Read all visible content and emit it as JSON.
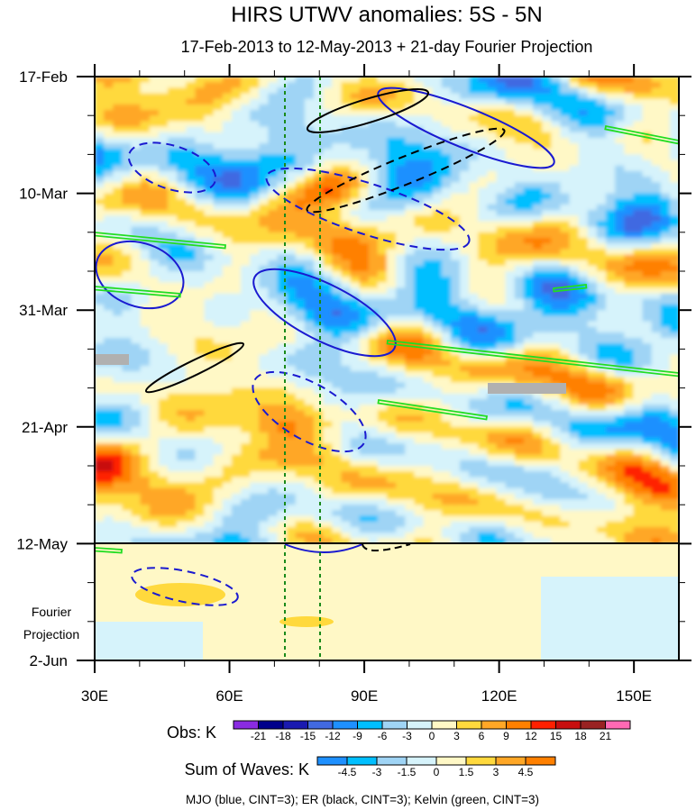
{
  "chart_data": {
    "type": "heatmap",
    "title": "HIRS UTWV anomalies: 5S - 5N",
    "subtitle": "17-Feb-2013 to 12-May-2013 + 21-day Fourier Projection",
    "x_range": [
      30,
      160
    ],
    "x_ticks": [
      {
        "value": 30,
        "label": "30E"
      },
      {
        "value": 60,
        "label": "60E"
      },
      {
        "value": 90,
        "label": "90E"
      },
      {
        "value": 120,
        "label": "120E"
      },
      {
        "value": 150,
        "label": "150E"
      }
    ],
    "y_range_days": [
      0,
      105
    ],
    "y_ticks": [
      {
        "day": 0,
        "label": "17-Feb"
      },
      {
        "day": 21,
        "label": "10-Mar"
      },
      {
        "day": 42,
        "label": "31-Mar"
      },
      {
        "day": 63,
        "label": "21-Apr"
      },
      {
        "day": 84,
        "label": "12-May"
      },
      {
        "day": 105,
        "label": "2-Jun"
      }
    ],
    "projection_start_day": 84,
    "projection_label_line1": "Fourier",
    "projection_label_line2": "Projection",
    "reference_longitudes": [
      72,
      80
    ],
    "obs_colorbar": {
      "title": "Obs: K",
      "levels": [
        "-21",
        "-18",
        "-15",
        "-12",
        "-9",
        "-6",
        "-3",
        "0",
        "3",
        "6",
        "9",
        "12",
        "15",
        "18",
        "21"
      ],
      "colors": [
        "#8a2be2",
        "#00008b",
        "#1a1ab0",
        "#4169e1",
        "#1e90ff",
        "#00bfff",
        "#9fd4f5",
        "#d6f3fb",
        "#fff8c6",
        "#ffd93d",
        "#ffa726",
        "#ff8000",
        "#ff2000",
        "#c80e0e",
        "#992222",
        "#ff69b4"
      ]
    },
    "waves_colorbar": {
      "title": "Sum of Waves: K",
      "levels": [
        "-4.5",
        "-3",
        "-1.5",
        "0",
        "1.5",
        "3",
        "4.5"
      ],
      "colors": [
        "#1e90ff",
        "#00bfff",
        "#9fd4f5",
        "#d6f3fb",
        "#fff8c6",
        "#ffd93d",
        "#ffa726",
        "#ff8000"
      ]
    },
    "caption": "MJO (blue, CINT=3); ER (black, CINT=3); Kelvin (green, CINT=3)",
    "features": [
      {
        "type": "obs-anomaly",
        "name": "Moist anomaly near 85E, early-mid March",
        "lon": 84,
        "day": 20,
        "value_k": 12
      },
      {
        "type": "obs-anomaly",
        "name": "Moist anomaly near 36E, late February",
        "lon": 36,
        "day": 7,
        "value_k": 6
      },
      {
        "type": "obs-anomaly",
        "name": "Moist anomaly near 155E, late February",
        "lon": 155,
        "day": 2,
        "value_k": 6
      },
      {
        "type": "obs-anomaly",
        "name": "Dry anomaly near 80E, early April",
        "lon": 78,
        "day": 43,
        "value_k": -6
      },
      {
        "type": "obs-anomaly",
        "name": "Dry anomaly near 75E, early May",
        "lon": 75,
        "day": 79,
        "value_k": -6
      },
      {
        "type": "obs-anomaly",
        "name": "Moist anomaly near 73E, mid April",
        "lon": 73,
        "day": 62,
        "value_k": 6
      },
      {
        "type": "obs-anomaly",
        "name": "Moist anomaly near 155E, late April",
        "lon": 155,
        "day": 74,
        "value_k": 6
      },
      {
        "type": "mjo-contour",
        "name": "MJO positive 65E-92E late March",
        "lon_center": 78,
        "day_center": 42,
        "sign": "positive"
      },
      {
        "type": "mjo-contour",
        "name": "MJO positive 30E-48E mid March",
        "lon_center": 38,
        "day_center": 35,
        "sign": "positive"
      },
      {
        "type": "mjo-contour",
        "name": "MJO positive 95E-132E late February",
        "lon_center": 112,
        "day_center": 9,
        "sign": "positive"
      },
      {
        "type": "mjo-contour",
        "name": "MJO negative 40E-57E late February",
        "lon_center": 48,
        "day_center": 16,
        "sign": "negative"
      },
      {
        "type": "mjo-contour",
        "name": "MJO negative 68E-113E mid March",
        "lon_center": 90,
        "day_center": 23,
        "sign": "negative"
      },
      {
        "type": "mjo-contour",
        "name": "MJO negative 64E-90E mid April",
        "lon_center": 76,
        "day_center": 60,
        "sign": "negative"
      },
      {
        "type": "mjo-contour",
        "name": "MJO negative 38E-62E projection",
        "lon_center": 50,
        "day_center": 92,
        "sign": "negative"
      },
      {
        "type": "er-contour",
        "name": "ER positive 77E-104E late February",
        "lon_center": 91,
        "day_center": 6,
        "sign": "positive"
      },
      {
        "type": "er-contour",
        "name": "ER negative 77E-122E early March",
        "lon_center": 100,
        "day_center": 15,
        "sign": "negative"
      },
      {
        "type": "er-contour",
        "name": "ER positive 41E-63E mid April",
        "lon_center": 52,
        "day_center": 52,
        "sign": "positive"
      },
      {
        "type": "kelvin-contour",
        "name": "Kelvin 30E-66E mid March",
        "lon_center": 48,
        "day_center": 30
      },
      {
        "type": "kelvin-contour",
        "name": "Kelvin 97E-160E early April",
        "lon_center": 128,
        "day_center": 50
      },
      {
        "type": "kelvin-contour",
        "name": "Kelvin 88E-117E mid April",
        "lon_center": 102,
        "day_center": 60
      },
      {
        "type": "kelvin-contour",
        "name": "Kelvin 150E-160E early March",
        "lon_center": 155,
        "day_center": 11
      }
    ]
  }
}
